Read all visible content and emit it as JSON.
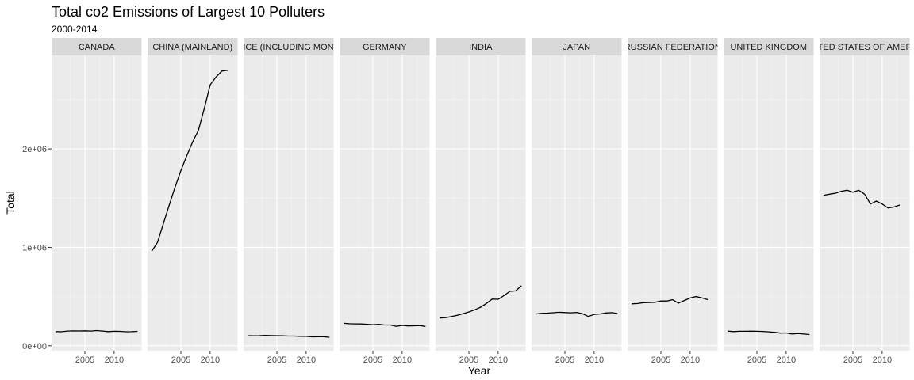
{
  "chart_data": {
    "type": "line",
    "title": "Total co2 Emissions of Largest 10 Polluters",
    "subtitle": "2000-2014",
    "xlabel": "Year",
    "ylabel": "Total",
    "x": [
      2000,
      2001,
      2002,
      2003,
      2004,
      2005,
      2006,
      2007,
      2008,
      2009,
      2010,
      2011,
      2012,
      2013,
      2014
    ],
    "xlim": [
      1999.3,
      2014.7
    ],
    "ylim": [
      -50000,
      2950000
    ],
    "x_ticks": [
      2005,
      2010
    ],
    "x_tick_labels": [
      "2005",
      "2010"
    ],
    "y_ticks": [
      0,
      1000000,
      2000000
    ],
    "y_tick_labels": [
      "0e+00",
      "1e+06",
      "2e+06"
    ],
    "grid": true,
    "facets": [
      {
        "label": "CANADA",
        "values": [
          145000,
          143000,
          150000,
          152000,
          151000,
          153000,
          150000,
          155000,
          150000,
          145000,
          148000,
          147000,
          143000,
          144000,
          147000
        ]
      },
      {
        "label": "CHINA (MAINLAND)",
        "values": [
          960000,
          1050000,
          1240000,
          1430000,
          1610000,
          1780000,
          1930000,
          2070000,
          2190000,
          2410000,
          2650000,
          2730000,
          2790000,
          2800000,
          null
        ]
      },
      {
        "label": "FRANCE (INCLUDING MONACO)",
        "values": [
          103000,
          102000,
          103000,
          105000,
          104000,
          103000,
          101000,
          99000,
          99000,
          96000,
          96000,
          91000,
          92000,
          92000,
          86000
        ]
      },
      {
        "label": "GERMANY",
        "values": [
          228000,
          224000,
          223000,
          222000,
          219000,
          215000,
          218000,
          211000,
          211000,
          198000,
          207000,
          202000,
          203000,
          206000,
          197000
        ]
      },
      {
        "label": "INDIA",
        "values": [
          282000,
          286000,
          297000,
          310000,
          326000,
          344000,
          366000,
          392000,
          431000,
          475000,
          472000,
          510000,
          553000,
          558000,
          610000
        ]
      },
      {
        "label": "JAPAN",
        "values": [
          323000,
          330000,
          332000,
          336000,
          341000,
          338000,
          335000,
          339000,
          326000,
          298000,
          319000,
          323000,
          334000,
          337000,
          328000
        ]
      },
      {
        "label": "RUSSIAN FEDERATION",
        "values": [
          426000,
          429000,
          438000,
          440000,
          442000,
          455000,
          455000,
          468000,
          433000,
          460000,
          486000,
          500000,
          487000,
          469000,
          null
        ]
      },
      {
        "label": "UNITED KINGDOM",
        "values": [
          150000,
          145000,
          148000,
          148000,
          149000,
          148000,
          146000,
          142000,
          137000,
          129000,
          131000,
          120000,
          125000,
          120000,
          115000
        ]
      },
      {
        "label": "UNITED STATES OF AMERICA",
        "values": [
          1530000,
          1540000,
          1550000,
          1570000,
          1580000,
          1560000,
          1580000,
          1540000,
          1440000,
          1470000,
          1440000,
          1400000,
          1410000,
          1430000,
          null
        ]
      }
    ]
  }
}
